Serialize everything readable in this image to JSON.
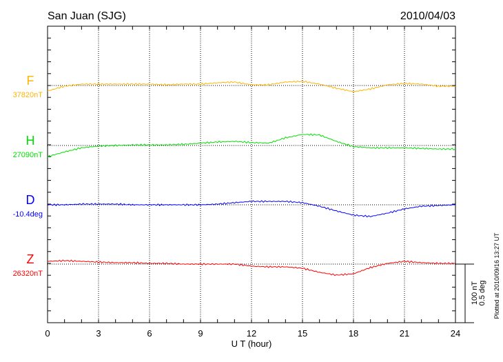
{
  "chart_data": {
    "type": "line",
    "title": "San Juan (SJG)",
    "date": "2010/04/03",
    "xlabel": "U T (hour)",
    "xlim": [
      0,
      24
    ],
    "xticks": [
      "0",
      "3",
      "6",
      "9",
      "12",
      "15",
      "18",
      "21",
      "24"
    ],
    "grid": true,
    "scale_bar": {
      "label_nt": "100 nT",
      "label_deg": "0.5 deg",
      "nt": 100,
      "deg": 0.5
    },
    "footer": "Plotted at 2010/09/16 13:27 UT",
    "x": [
      0,
      1,
      2,
      3,
      4,
      5,
      6,
      7,
      8,
      9,
      10,
      11,
      12,
      13,
      14,
      15,
      16,
      17,
      18,
      19,
      20,
      21,
      22,
      23,
      24
    ],
    "series": [
      {
        "name": "F",
        "baseline_label": "37820nT",
        "color": "#ffb400",
        "unit": "nT",
        "values": [
          -9.4,
          -1.2,
          2.4,
          2.4,
          2.4,
          2.4,
          2.4,
          1.2,
          2.4,
          2.4,
          4.7,
          5.9,
          1.2,
          1.2,
          5.9,
          7.1,
          2.4,
          -4.7,
          -10.6,
          -5.9,
          1.2,
          3.5,
          2.4,
          -1.2,
          -1.2
        ]
      },
      {
        "name": "H",
        "baseline_label": "27090nT",
        "color": "#00e000",
        "unit": "nT",
        "values": [
          -19,
          -11,
          -4,
          -1,
          0,
          1,
          1,
          1,
          2,
          4,
          6,
          7,
          5,
          4,
          13,
          19,
          18,
          7,
          -2,
          -4,
          -4,
          -4,
          -5,
          -6,
          -6
        ]
      },
      {
        "name": "D",
        "baseline_label": "-10.4deg",
        "color": "#0000ff",
        "unit": "deg",
        "values": [
          0,
          0,
          0.006,
          0.006,
          0.006,
          0,
          0,
          0,
          0,
          0,
          0.006,
          0.018,
          0.029,
          0.029,
          0.029,
          0.018,
          -0.012,
          -0.053,
          -0.088,
          -0.1,
          -0.071,
          -0.035,
          -0.012,
          -0.006,
          0
        ]
      },
      {
        "name": "Z",
        "baseline_label": "26320nT",
        "color": "#ff0000",
        "unit": "nT",
        "values": [
          4.7,
          5.9,
          4.7,
          3.5,
          2.4,
          2.4,
          1.2,
          1.2,
          0,
          0,
          0,
          0,
          -3.5,
          -4.7,
          -4.7,
          -7.1,
          -14.1,
          -18.8,
          -16.5,
          -5.9,
          1.2,
          4.7,
          2.4,
          1.2,
          1.2
        ]
      }
    ]
  }
}
